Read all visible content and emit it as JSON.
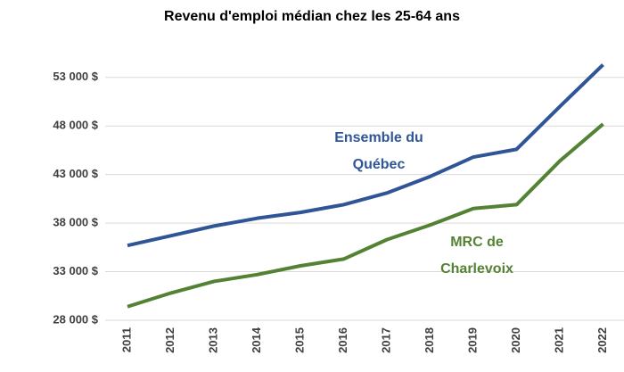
{
  "chart_data": {
    "type": "line",
    "title": "Revenu d'emploi médian chez les 25-64 ans",
    "categories": [
      "2011",
      "2012",
      "2013",
      "2014",
      "2015",
      "2016",
      "2017",
      "2018",
      "2019",
      "2020",
      "2021",
      "2022"
    ],
    "series": [
      {
        "name": "Ensemble du Québec",
        "color": "#2f5597",
        "values": [
          35700,
          36700,
          37700,
          38500,
          39100,
          39900,
          41100,
          42800,
          44800,
          45600,
          50000,
          54300
        ]
      },
      {
        "name": "MRC de Charlevoix",
        "color": "#548235",
        "values": [
          29400,
          30800,
          32000,
          32700,
          33600,
          34300,
          36300,
          37800,
          39500,
          39900,
          44400,
          48200
        ]
      }
    ],
    "ylim": [
      28000,
      55000
    ],
    "yticks": [
      {
        "value": 28000,
        "label": "28 000 $"
      },
      {
        "value": 33000,
        "label": "33 000 $"
      },
      {
        "value": 38000,
        "label": "38 000 $"
      },
      {
        "value": 43000,
        "label": "43 000 $"
      },
      {
        "value": 48000,
        "label": "48 000 $"
      },
      {
        "value": 53000,
        "label": "53 000 $"
      }
    ],
    "grid": true
  }
}
